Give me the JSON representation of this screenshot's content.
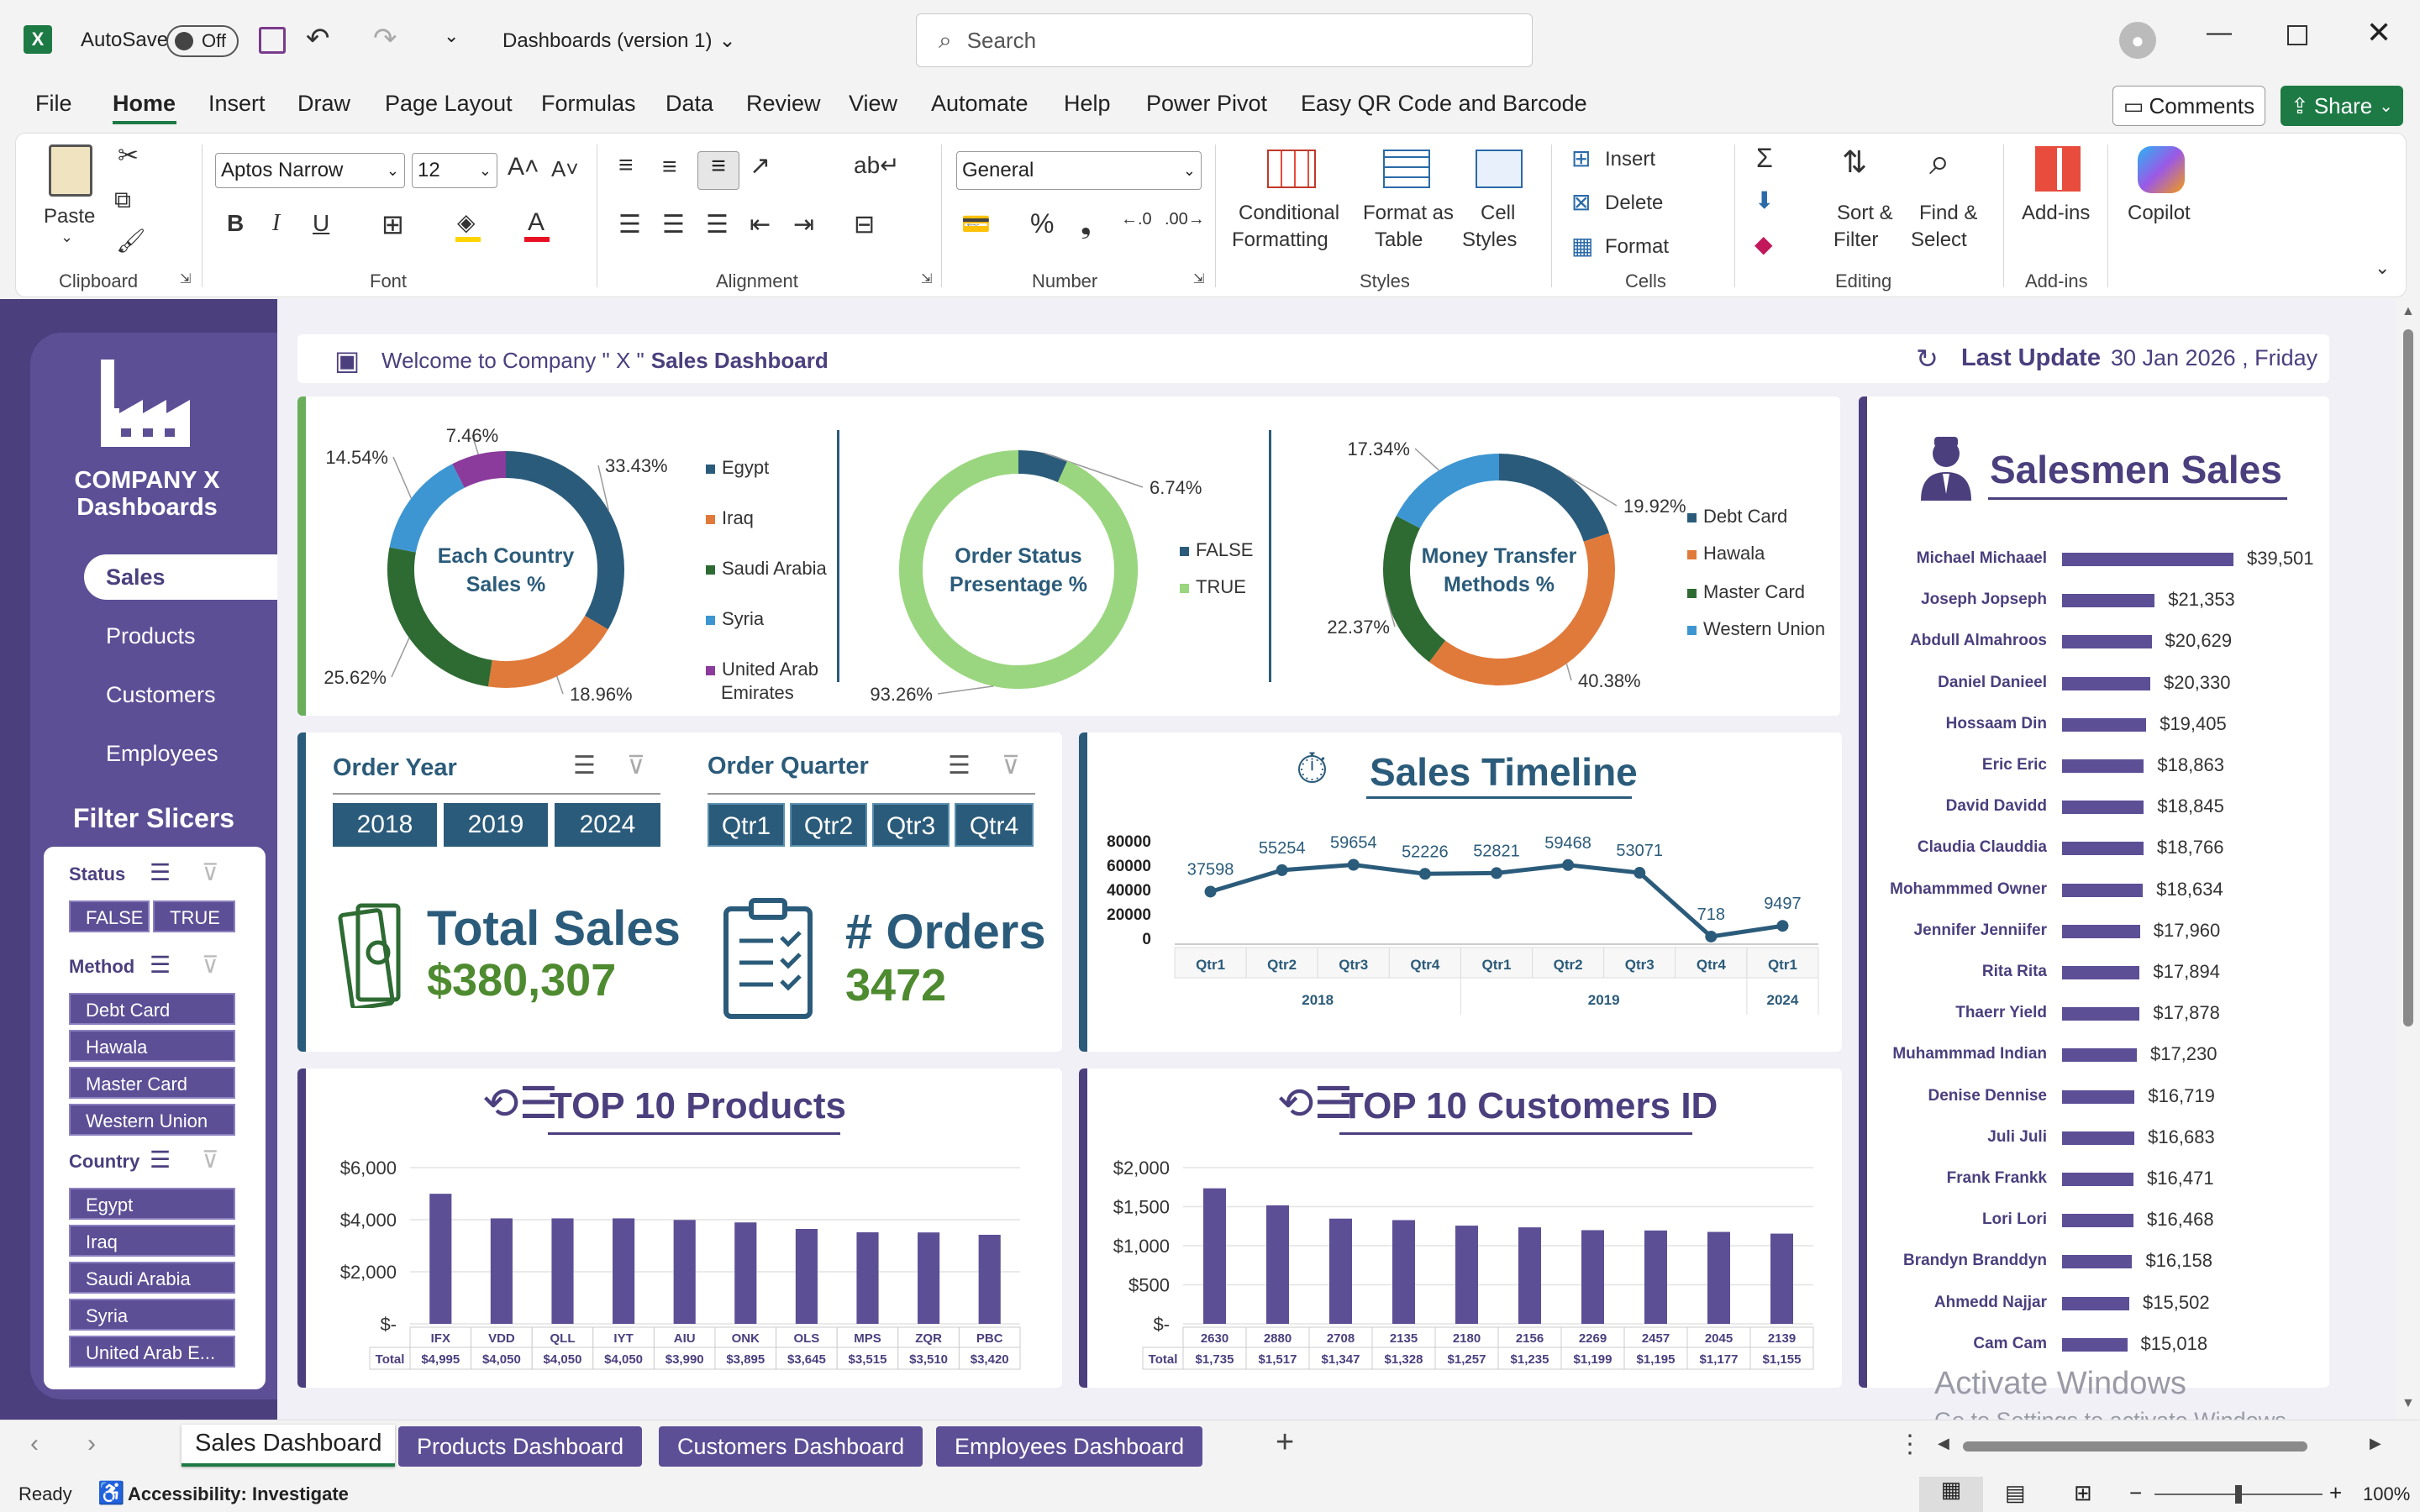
{
  "titlebar": {
    "autosave": "AutoSave",
    "autosave_state": "Off",
    "doc_title": "Dashboards (version 1)",
    "search_placeholder": "Search"
  },
  "menu": [
    "File",
    "Home",
    "Insert",
    "Draw",
    "Page Layout",
    "Formulas",
    "Data",
    "Review",
    "View",
    "Automate",
    "Help",
    "Power Pivot",
    "Easy QR Code and Barcode"
  ],
  "menu_right": {
    "comments": "Comments",
    "share": "Share"
  },
  "ribbon": {
    "clipboard": {
      "label": "Clipboard",
      "paste": "Paste"
    },
    "font": {
      "label": "Font",
      "font_name": "Aptos Narrow",
      "font_size": "12"
    },
    "alignment": {
      "label": "Alignment"
    },
    "number": {
      "label": "Number",
      "format": "General"
    },
    "styles": {
      "label": "Styles",
      "conditional": "Conditional",
      "formatting": "Formatting",
      "format_as": "Format as",
      "table": "Table",
      "cell": "Cell",
      "styles_txt": "Styles"
    },
    "cells": {
      "label": "Cells",
      "insert": "Insert",
      "delete": "Delete",
      "format": "Format"
    },
    "editing": {
      "label": "Editing",
      "sort": "Sort &",
      "filter": "Filter",
      "find": "Find &",
      "select": "Select"
    },
    "addins": {
      "label": "Add-ins",
      "btn": "Add-ins"
    },
    "copilot": "Copilot"
  },
  "sidebar": {
    "company": "COMPANY X",
    "dashboards": "Dashboards",
    "nav": [
      "Sales",
      "Products",
      "Customers",
      "Employees"
    ],
    "filter_title": "Filter Slicers",
    "status_label": "Status",
    "status": [
      "FALSE",
      "TRUE"
    ],
    "method_label": "Method",
    "methods": [
      "Debt Card",
      "Hawala",
      "Master Card",
      "Western Union"
    ],
    "country_label": "Country",
    "countries": [
      "Egypt",
      "Iraq",
      "Saudi Arabia",
      "Syria",
      "United Arab E..."
    ]
  },
  "header": {
    "welcome": "Welcome to Company \" X \"",
    "sales_dash": "Sales Dashboard",
    "last_update_label": "Last Update",
    "last_update": "30 Jan 2026 , Friday"
  },
  "donut1": {
    "title1": "Each Country",
    "title2": "Sales %",
    "slices": [
      {
        "name": "Egypt",
        "pct": 33.43,
        "color": "#2b5b7a",
        "label": "33.43%"
      },
      {
        "name": "Iraq",
        "pct": 18.96,
        "color": "#e07a3a",
        "label": "18.96%"
      },
      {
        "name": "Saudi Arabia",
        "pct": 25.62,
        "color": "#2e6b33",
        "label": "25.62%"
      },
      {
        "name": "Syria",
        "pct": 14.54,
        "color": "#3d96d1",
        "label": "14.54%"
      },
      {
        "name": "United Arab Emirates",
        "pct": 7.46,
        "color": "#8b3b9b",
        "label": "7.46%"
      }
    ],
    "legend": [
      "Egypt",
      "Iraq",
      "Saudi Arabia",
      "Syria",
      "United Arab",
      "Emirates"
    ]
  },
  "donut2": {
    "title1": "Order Status",
    "title2": "Presentage %",
    "slices": [
      {
        "name": "FALSE",
        "pct": 6.74,
        "color": "#2b5b7a",
        "label": "6.74%"
      },
      {
        "name": "TRUE",
        "pct": 93.26,
        "color": "#9ad67f",
        "label": "93.26%"
      }
    ],
    "legend": [
      "FALSE",
      "TRUE"
    ]
  },
  "donut3": {
    "title1": "Money Transfer",
    "title2": "Methods %",
    "slices": [
      {
        "name": "Debt Card",
        "pct": 19.92,
        "color": "#2b5b7a",
        "label": "19.92%"
      },
      {
        "name": "Hawala",
        "pct": 40.38,
        "color": "#e07a3a",
        "label": "40.38%"
      },
      {
        "name": "Master Card",
        "pct": 22.37,
        "color": "#2e6b33",
        "label": "22.37%"
      },
      {
        "name": "Western Union",
        "pct": 17.34,
        "color": "#3d96d1",
        "label": "17.34%"
      }
    ],
    "legend": [
      "Debt Card",
      "Hawala",
      "Master Card",
      "Western Union"
    ]
  },
  "orders": {
    "order_year": "Order Year",
    "years": [
      "2018",
      "2019",
      "2024"
    ],
    "order_quarter": "Order Quarter",
    "quarters": [
      "Qtr1",
      "Qtr2",
      "Qtr3",
      "Qtr4"
    ],
    "total_sales_label": "Total Sales",
    "total_sales": "$380,307",
    "orders_label": "# Orders",
    "orders": "3472"
  },
  "timeline": {
    "title": "Sales Timeline"
  },
  "top_products": {
    "title": "TOP 10 Products"
  },
  "top_customers": {
    "title": "TOP 10 Customers ID"
  },
  "salesmen": {
    "title": "Salesmen Sales"
  },
  "chart_data": [
    {
      "type": "line",
      "title": "Sales Timeline",
      "x": [
        "Qtr1",
        "Qtr2",
        "Qtr3",
        "Qtr4",
        "Qtr1",
        "Qtr2",
        "Qtr3",
        "Qtr4",
        "Qtr1"
      ],
      "groups": [
        {
          "name": "2018",
          "count": 4
        },
        {
          "name": "2019",
          "count": 4
        },
        {
          "name": "2024",
          "count": 1
        }
      ],
      "values": [
        37598,
        55254,
        59654,
        52226,
        52821,
        59468,
        53071,
        718,
        9497
      ],
      "yticks": [
        "80000",
        "60000",
        "40000",
        "20000",
        "0"
      ],
      "ylim": [
        0,
        80000
      ]
    },
    {
      "type": "bar",
      "title": "TOP 10 Products",
      "categories": [
        "IFX",
        "VDD",
        "QLL",
        "IYT",
        "AIU",
        "ONK",
        "OLS",
        "MPS",
        "ZQR",
        "PBC"
      ],
      "values": [
        4995,
        4050,
        4050,
        4050,
        3990,
        3895,
        3645,
        3515,
        3510,
        3420
      ],
      "labels": [
        "$4,995",
        "$4,050",
        "$4,050",
        "$4,050",
        "$3,990",
        "$3,895",
        "$3,645",
        "$3,515",
        "$3,510",
        "$3,420"
      ],
      "total_label": "Total",
      "yticks": [
        "$6,000",
        "$4,000",
        "$2,000",
        "$-"
      ],
      "ylim": [
        0,
        6000
      ]
    },
    {
      "type": "bar",
      "title": "TOP 10 Customers ID",
      "categories": [
        "2630",
        "2880",
        "2708",
        "2135",
        "2180",
        "2156",
        "2269",
        "2457",
        "2045",
        "2139"
      ],
      "values": [
        1735,
        1517,
        1347,
        1328,
        1257,
        1235,
        1199,
        1195,
        1177,
        1155
      ],
      "labels": [
        "$1,735",
        "$1,517",
        "$1,347",
        "$1,328",
        "$1,257",
        "$1,235",
        "$1,199",
        "$1,195",
        "$1,177",
        "$1,155"
      ],
      "total_label": "Total",
      "yticks": [
        "$2,000",
        "$1,500",
        "$1,000",
        "$500",
        "$-"
      ],
      "ylim": [
        0,
        2000
      ]
    },
    {
      "type": "bar",
      "title": "Salesmen Sales",
      "categories": [
        "Michael Michaael",
        "Joseph Jopseph",
        "Abdull Almahroos",
        "Daniel Danieel",
        "Hossaam Din",
        "Eric Eric",
        "David Davidd",
        "Claudia Clauddia",
        "Mohammmed Owner",
        "Jennifer Jenniifer",
        "Rita Rita",
        "Thaerr Yield",
        "Muhammmad Indian",
        "Denise Dennise",
        "Juli Juli",
        "Frank Frankk",
        "Lori Lori",
        "Brandyn Branddyn",
        "Ahmedd Najjar",
        "Cam Cam"
      ],
      "values": [
        39501,
        21353,
        20629,
        20330,
        19405,
        18863,
        18845,
        18766,
        18634,
        17960,
        17894,
        17878,
        17230,
        16719,
        16683,
        16471,
        16468,
        16158,
        15502,
        15018
      ],
      "labels": [
        "$39,501",
        "$21,353",
        "$20,629",
        "$20,330",
        "$19,405",
        "$18,863",
        "$18,845",
        "$18,766",
        "$18,634",
        "$17,960",
        "$17,894",
        "$17,878",
        "$17,230",
        "$16,719",
        "$16,683",
        "$16,471",
        "$16,468",
        "$16,158",
        "$15,502",
        "$15,018"
      ]
    }
  ],
  "watermark": {
    "line1": "Activate Windows",
    "line2": "Go to Settings to activate Windows."
  },
  "tabs": [
    "Sales Dashboard",
    "Products Dashboard",
    "Customers Dashboard",
    "Employees Dashboard"
  ],
  "status": {
    "ready": "Ready",
    "accessibility": "Accessibility: Investigate",
    "zoom": "100%"
  }
}
